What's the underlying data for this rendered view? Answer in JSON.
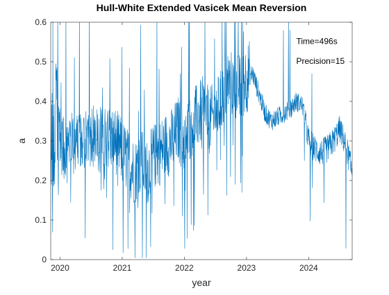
{
  "chart_data": {
    "type": "line",
    "title": "Hull-White Extended Vasicek Mean Reversion",
    "xlabel": "year",
    "ylabel": "a",
    "xlim": [
      2019.85,
      2024.7
    ],
    "ylim": [
      0,
      0.6
    ],
    "x_ticks": [
      2020,
      2021,
      2022,
      2023,
      2024
    ],
    "x_tick_labels": [
      "2020",
      "2021",
      "2022",
      "2023",
      "2024"
    ],
    "y_ticks": [
      0,
      0.1,
      0.2,
      0.3,
      0.4,
      0.5,
      0.6
    ],
    "y_tick_labels": [
      "0",
      "0.1",
      "0.2",
      "0.3",
      "0.4",
      "0.5",
      "0.6"
    ],
    "grid": false,
    "legend": "none",
    "color": "#0072BD",
    "annotations": [
      {
        "text": "Time=496s",
        "x": 2023.8,
        "y": 0.545
      },
      {
        "text": "Precision=15",
        "x": 2023.8,
        "y": 0.495
      }
    ],
    "series": [
      {
        "x": [
          2019.85,
          2019.95,
          2020.0,
          2020.1,
          2020.2,
          2020.3,
          2020.4,
          2020.5,
          2020.6,
          2020.7,
          2020.8,
          2020.9,
          2021.0,
          2021.1,
          2021.2,
          2021.3,
          2021.4,
          2021.5,
          2021.6,
          2021.7,
          2021.8,
          2021.9,
          2022.0,
          2022.1,
          2022.2,
          2022.3,
          2022.4,
          2022.5,
          2022.6,
          2022.7,
          2022.8,
          2022.9,
          2023.0,
          2023.1,
          2023.2,
          2023.3,
          2023.4,
          2023.5,
          2023.6,
          2023.7,
          2023.8,
          2023.9,
          2024.0,
          2024.1,
          2024.2,
          2024.3,
          2024.4,
          2024.5,
          2024.6,
          2024.7
        ],
        "y": [
          0.3,
          0.35,
          0.3,
          0.27,
          0.3,
          0.28,
          0.3,
          0.31,
          0.3,
          0.3,
          0.31,
          0.3,
          0.27,
          0.25,
          0.22,
          0.25,
          0.22,
          0.26,
          0.27,
          0.29,
          0.3,
          0.33,
          0.3,
          0.34,
          0.36,
          0.38,
          0.35,
          0.37,
          0.4,
          0.45,
          0.44,
          0.43,
          0.46,
          0.47,
          0.42,
          0.37,
          0.35,
          0.36,
          0.37,
          0.38,
          0.4,
          0.39,
          0.3,
          0.28,
          0.27,
          0.28,
          0.3,
          0.33,
          0.29,
          0.22
        ]
      }
    ]
  }
}
